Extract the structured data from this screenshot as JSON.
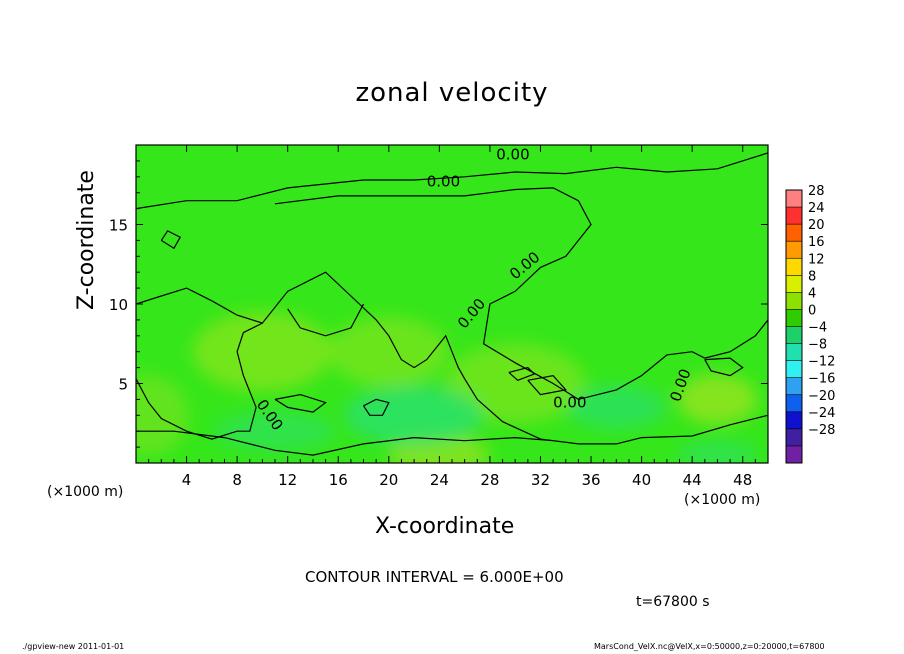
{
  "chart_data": {
    "type": "heatmap",
    "title": "zonal velocity",
    "xlabel": "X-coordinate",
    "ylabel": "Z-coordinate",
    "x_unit": "(×1000 m)",
    "z_unit": "(×1000 m)",
    "xlim": [
      0,
      50
    ],
    "ylim": [
      0,
      20
    ],
    "x_ticks": [
      4,
      8,
      12,
      16,
      20,
      24,
      28,
      32,
      36,
      40,
      44,
      48
    ],
    "y_ticks": [
      5,
      10,
      15
    ],
    "colorbar": {
      "levels": [
        28,
        24,
        20,
        16,
        12,
        8,
        4,
        0,
        -4,
        -8,
        -12,
        -16,
        -20,
        -24,
        -28
      ],
      "colors": [
        "#ff8080",
        "#ff3030",
        "#ff6000",
        "#ff9a00",
        "#ffd800",
        "#d8ef00",
        "#8ee000",
        "#2ecc00",
        "#1ed06a",
        "#20e0b0",
        "#30f0f0",
        "#30a0f0",
        "#1060f0",
        "#1010d0",
        "#4020a0",
        "#7020a0"
      ]
    },
    "field_range_approx": [
      -8,
      6
    ],
    "contour_interval": "6.000E+00",
    "contour_labels": [
      "0.00",
      "0.00",
      "0.00",
      "0.00",
      "0.00",
      "0.00",
      "0.00"
    ]
  },
  "contour_text": "CONTOUR INTERVAL = 6.000E+00",
  "time_text": "t=67800 s",
  "footer_left": "./gpview-new   2011-01-01",
  "footer_right": "MarsCond_VelX.nc@VelX,x=0:50000,z=0:20000,t=67800",
  "colors": {
    "field_base": "#35e61a",
    "warm_patch": "#8de41e",
    "cool_patch": "#27e07a",
    "contour_line": "#000000"
  }
}
